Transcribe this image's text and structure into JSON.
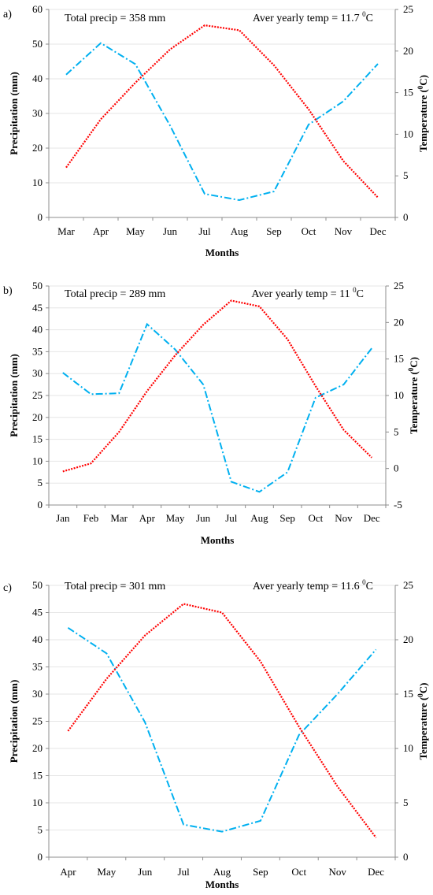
{
  "chart_data": [
    {
      "type": "line",
      "panel_label": "a)",
      "categories": [
        "Mar",
        "Apr",
        "May",
        "Jun",
        "Jul",
        "Aug",
        "Sep",
        "Oct",
        "Nov",
        "Dec"
      ],
      "annotation_left": "Total precip = 358 mm",
      "annotation_right_main": "Aver yearly temp = 11.7 ",
      "annotation_right_sup": "0",
      "annotation_right_unit": "C",
      "xlabel": "Months",
      "ylabel": "Precipitation  (mm)",
      "y2label_main": "Temperature  (",
      "y2label_sup": "0",
      "y2label_end": "C)",
      "ylim": [
        0,
        60
      ],
      "yticks": [
        0,
        10,
        20,
        30,
        40,
        50,
        60
      ],
      "y2lim": [
        0,
        25
      ],
      "y2ticks": [
        0,
        5,
        10,
        15,
        20,
        25
      ],
      "series": [
        {
          "axis": "left",
          "color": "#00b0f0",
          "dash": "dashdot",
          "values": [
            41.2,
            50.3,
            44.2,
            26.5,
            6.8,
            5.0,
            7.5,
            26.8,
            33.5,
            44.3
          ]
        },
        {
          "axis": "right",
          "color": "#ff0000",
          "dash": "dotted",
          "values": [
            6.0,
            11.8,
            16.2,
            20.2,
            23.1,
            22.5,
            18.3,
            13.0,
            6.8,
            2.4
          ]
        }
      ]
    },
    {
      "type": "line",
      "panel_label": "b)",
      "categories": [
        "Jan",
        "Feb",
        "Mar",
        "Apr",
        "May",
        "Jun",
        "Jul",
        "Aug",
        "Sep",
        "Oct",
        "Nov",
        "Dec"
      ],
      "annotation_left": "Total precip = 289 mm",
      "annotation_right_main": "Aver yearly temp = 11 ",
      "annotation_right_sup": "0",
      "annotation_right_unit": "C",
      "xlabel": "Months",
      "ylabel": "Precipitation  (mm)",
      "y2label_main": "Temperature  (",
      "y2label_sup": "0",
      "y2label_end": "C)",
      "ylim": [
        0,
        50
      ],
      "yticks": [
        0,
        5,
        10,
        15,
        20,
        25,
        30,
        35,
        40,
        45,
        50
      ],
      "y2lim": [
        -5,
        25
      ],
      "y2ticks": [
        -5,
        0,
        5,
        10,
        15,
        20,
        25
      ],
      "series": [
        {
          "axis": "left",
          "color": "#00b0f0",
          "dash": "dashdot",
          "values": [
            30.2,
            25.3,
            25.5,
            41.3,
            35.5,
            27.5,
            5.3,
            3.0,
            7.5,
            24.5,
            27.5,
            35.8
          ]
        },
        {
          "axis": "right",
          "color": "#ff0000",
          "dash": "dotted",
          "values": [
            -0.4,
            0.7,
            5.0,
            10.6,
            15.5,
            19.7,
            23.0,
            22.2,
            17.7,
            11.3,
            5.3,
            1.5
          ]
        }
      ]
    },
    {
      "type": "line",
      "panel_label": "c)",
      "categories": [
        "Apr",
        "May",
        "Jun",
        "Jul",
        "Aug",
        "Sep",
        "Oct",
        "Nov",
        "Dec"
      ],
      "annotation_left": "Total precip = 301 mm",
      "annotation_right_main": "Aver yearly temp = 11.6 ",
      "annotation_right_sup": "0",
      "annotation_right_unit": "C",
      "xlabel": "Months",
      "ylabel": "Precipitation (mm)",
      "y2label_main": "Temperature  (",
      "y2label_sup": "0",
      "y2label_end": "C)",
      "ylim": [
        0,
        50
      ],
      "yticks": [
        0,
        5,
        10,
        15,
        20,
        25,
        30,
        35,
        40,
        45,
        50
      ],
      "y2lim": [
        0,
        25
      ],
      "y2ticks": [
        0,
        5,
        10,
        15,
        20,
        25
      ],
      "series": [
        {
          "axis": "left",
          "color": "#00b0f0",
          "dash": "dashdot",
          "values": [
            42.2,
            37.5,
            24.8,
            6.0,
            4.7,
            6.7,
            22.5,
            30.0,
            38.2
          ]
        },
        {
          "axis": "right",
          "color": "#ff0000",
          "dash": "dotted",
          "values": [
            11.6,
            16.4,
            20.4,
            23.3,
            22.5,
            18.0,
            12.0,
            6.5,
            1.8
          ]
        }
      ]
    }
  ]
}
